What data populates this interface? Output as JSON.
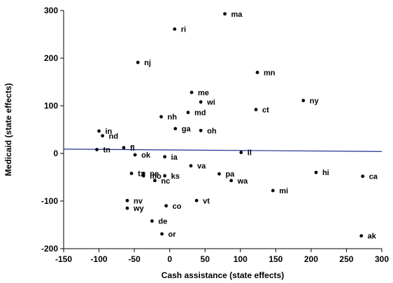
{
  "chart_data": {
    "type": "scatter",
    "xlabel": "Cash assistance (state effects)",
    "ylabel": "Medicaid (state effects)",
    "xlim": [
      -150,
      300
    ],
    "ylim": [
      -200,
      300
    ],
    "xticks": [
      -150,
      -100,
      -50,
      0,
      50,
      100,
      150,
      200,
      250,
      300
    ],
    "yticks": [
      -200,
      -100,
      0,
      100,
      200,
      300
    ],
    "grid": false,
    "legend": "none",
    "fit_line": {
      "x": [
        -150,
        300
      ],
      "y": [
        9,
        4
      ],
      "color": "#1f2f8f"
    },
    "points": [
      {
        "label": "ma",
        "x": 78,
        "y": 293
      },
      {
        "label": "ri",
        "x": 7,
        "y": 261
      },
      {
        "label": "nj",
        "x": -45,
        "y": 191
      },
      {
        "label": "mn",
        "x": 124,
        "y": 170
      },
      {
        "label": "me",
        "x": 31,
        "y": 128
      },
      {
        "label": "wi",
        "x": 44,
        "y": 108
      },
      {
        "label": "ny",
        "x": 189,
        "y": 111
      },
      {
        "label": "ct",
        "x": 122,
        "y": 92
      },
      {
        "label": "md",
        "x": 26,
        "y": 86
      },
      {
        "label": "nh",
        "x": -12,
        "y": 77
      },
      {
        "label": "ga",
        "x": 8,
        "y": 52
      },
      {
        "label": "oh",
        "x": 44,
        "y": 48
      },
      {
        "label": "in",
        "x": -100,
        "y": 47
      },
      {
        "label": "nd",
        "x": -95,
        "y": 37
      },
      {
        "label": "fl",
        "x": -65,
        "y": 12
      },
      {
        "label": "tn",
        "x": -103,
        "y": 8
      },
      {
        "label": "il",
        "x": 101,
        "y": 2
      },
      {
        "label": "ok",
        "x": -49,
        "y": -3
      },
      {
        "label": "ia",
        "x": -7,
        "y": -7
      },
      {
        "label": "va",
        "x": 30,
        "y": -26
      },
      {
        "label": "tx",
        "x": -54,
        "y": -42
      },
      {
        "label": "ne",
        "x": -37,
        "y": -42
      },
      {
        "label": "pa",
        "x": 70,
        "y": -43
      },
      {
        "label": "hi",
        "x": 207,
        "y": -40
      },
      {
        "label": "mo",
        "x": -37,
        "y": -47
      },
      {
        "label": "ks",
        "x": -7,
        "y": -47
      },
      {
        "label": "ca",
        "x": 273,
        "y": -48
      },
      {
        "label": "nc",
        "x": -21,
        "y": -57
      },
      {
        "label": "wa",
        "x": 87,
        "y": -57
      },
      {
        "label": "mi",
        "x": 146,
        "y": -78
      },
      {
        "label": "nv",
        "x": -60,
        "y": -99
      },
      {
        "label": "vt",
        "x": 38,
        "y": -99
      },
      {
        "label": "wy",
        "x": -60,
        "y": -115
      },
      {
        "label": "co",
        "x": -5,
        "y": -110
      },
      {
        "label": "de",
        "x": -25,
        "y": -142
      },
      {
        "label": "or",
        "x": -11,
        "y": -169
      },
      {
        "label": "ak",
        "x": 271,
        "y": -173
      }
    ]
  }
}
